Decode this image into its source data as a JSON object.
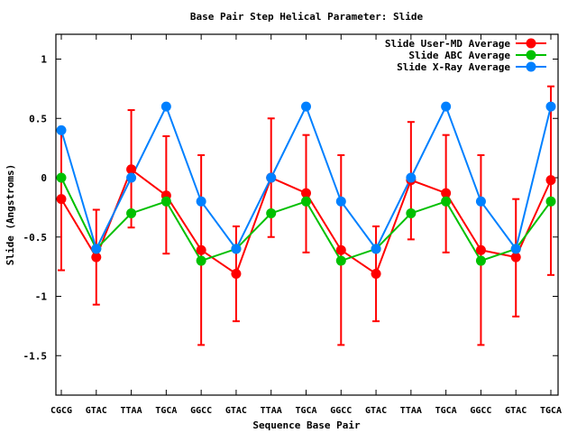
{
  "chart_data": {
    "type": "line",
    "title": "Base Pair Step Helical Parameter: Slide",
    "xlabel": "Sequence Base Pair",
    "ylabel": "Slide (Angstroms)",
    "ylim": [
      -1.85,
      1.2
    ],
    "yticks": [
      1,
      0.5,
      0,
      -0.5,
      -1,
      -1.5
    ],
    "ytick_labels": [
      "1",
      "0.5",
      "0",
      "-0.5",
      "-1",
      "-1.5"
    ],
    "categories": [
      "CGCG",
      "GTAC",
      "TTAA",
      "TGCA",
      "GGCC",
      "GTAC",
      "TTAA",
      "TGCA",
      "GGCC",
      "GTAC",
      "TTAA",
      "TGCA",
      "GGCC",
      "GTAC",
      "TGCA"
    ],
    "legend_position": "top-right",
    "grid": false,
    "series": [
      {
        "name": "Slide User-MD Average",
        "color": "#ff0000",
        "values": [
          -0.18,
          -0.67,
          0.07,
          -0.15,
          -0.61,
          -0.81,
          0.0,
          -0.13,
          -0.61,
          -0.81,
          -0.02,
          -0.13,
          -0.61,
          -0.67,
          -0.02
        ],
        "error_low": [
          -0.78,
          -1.07,
          -0.42,
          -0.64,
          -1.41,
          -1.21,
          -0.5,
          -0.63,
          -1.41,
          -1.21,
          -0.52,
          -0.63,
          -1.41,
          -1.17,
          -0.82
        ],
        "error_high": [
          0.38,
          -0.27,
          0.57,
          0.35,
          0.19,
          -0.41,
          0.5,
          0.36,
          0.19,
          -0.41,
          0.47,
          0.36,
          0.19,
          -0.18,
          0.77
        ]
      },
      {
        "name": "Slide ABC Average",
        "color": "#00c000",
        "values": [
          0.0,
          -0.6,
          -0.3,
          -0.2,
          -0.7,
          -0.6,
          -0.3,
          -0.2,
          -0.7,
          -0.6,
          -0.3,
          -0.2,
          -0.7,
          -0.6,
          -0.2
        ]
      },
      {
        "name": "Slide X-Ray Average",
        "color": "#0080ff",
        "values": [
          0.4,
          -0.6,
          0.0,
          0.6,
          -0.2,
          -0.6,
          0.0,
          0.6,
          -0.2,
          -0.6,
          0.0,
          0.6,
          -0.2,
          -0.6,
          0.6
        ]
      }
    ]
  }
}
